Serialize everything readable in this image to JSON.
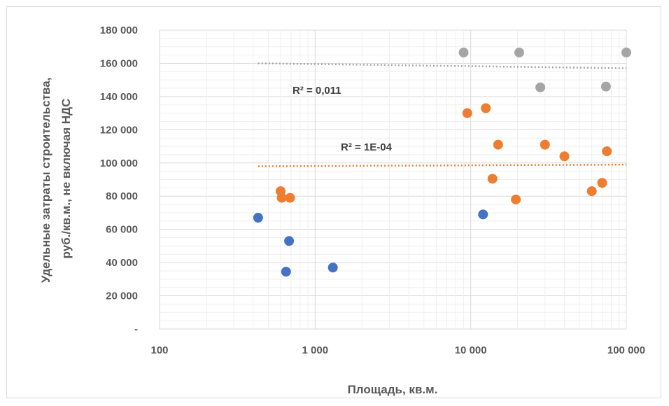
{
  "chart_data": {
    "type": "scatter",
    "title": "",
    "xlabel": "Площадь, кв.м.",
    "ylabel_lines": [
      "Удельные затраты строительства,",
      "руб./кв.м., не включая НДС"
    ],
    "x_scale": "log",
    "xlim": [
      100,
      100000
    ],
    "ylim": [
      0,
      180000
    ],
    "grid": true,
    "x_tick_values": [
      100,
      1000,
      10000,
      100000
    ],
    "x_tick_labels": [
      "100",
      "1 000",
      "10 000",
      "100 000"
    ],
    "y_tick_values": [
      0,
      20000,
      40000,
      60000,
      80000,
      100000,
      120000,
      140000,
      160000,
      180000
    ],
    "y_tick_labels": [
      "-",
      "20 000",
      "40 000",
      "60 000",
      "80 000",
      "100 000",
      "120 000",
      "140 000",
      "160 000",
      "180 000"
    ],
    "series": [
      {
        "color": "#4472C4",
        "points": [
          {
            "x": 430,
            "y": 67000
          },
          {
            "x": 680,
            "y": 53000
          },
          {
            "x": 650,
            "y": 34500
          },
          {
            "x": 1300,
            "y": 37000
          },
          {
            "x": 12000,
            "y": 69000
          }
        ]
      },
      {
        "color": "#ED7D31",
        "points": [
          {
            "x": 600,
            "y": 83000
          },
          {
            "x": 610,
            "y": 79000
          },
          {
            "x": 690,
            "y": 79000
          },
          {
            "x": 9500,
            "y": 130000
          },
          {
            "x": 12500,
            "y": 133000
          },
          {
            "x": 13800,
            "y": 90500
          },
          {
            "x": 15000,
            "y": 111000
          },
          {
            "x": 19500,
            "y": 78000
          },
          {
            "x": 30000,
            "y": 111000
          },
          {
            "x": 40000,
            "y": 104000
          },
          {
            "x": 60000,
            "y": 83000
          },
          {
            "x": 70000,
            "y": 88000
          },
          {
            "x": 75000,
            "y": 107000
          }
        ],
        "trendline": {
          "x": [
            430,
            100000
          ],
          "y": [
            98000,
            99000
          ],
          "label": "R² = 1E-04"
        }
      },
      {
        "color": "#A5A5A5",
        "points": [
          {
            "x": 9000,
            "y": 166500
          },
          {
            "x": 20500,
            "y": 166500
          },
          {
            "x": 28000,
            "y": 145500
          },
          {
            "x": 74000,
            "y": 146000
          },
          {
            "x": 100000,
            "y": 166500
          }
        ],
        "trendline": {
          "x": [
            430,
            100000
          ],
          "y": [
            160000,
            157000
          ],
          "label": "R² = 0,011"
        }
      }
    ]
  }
}
